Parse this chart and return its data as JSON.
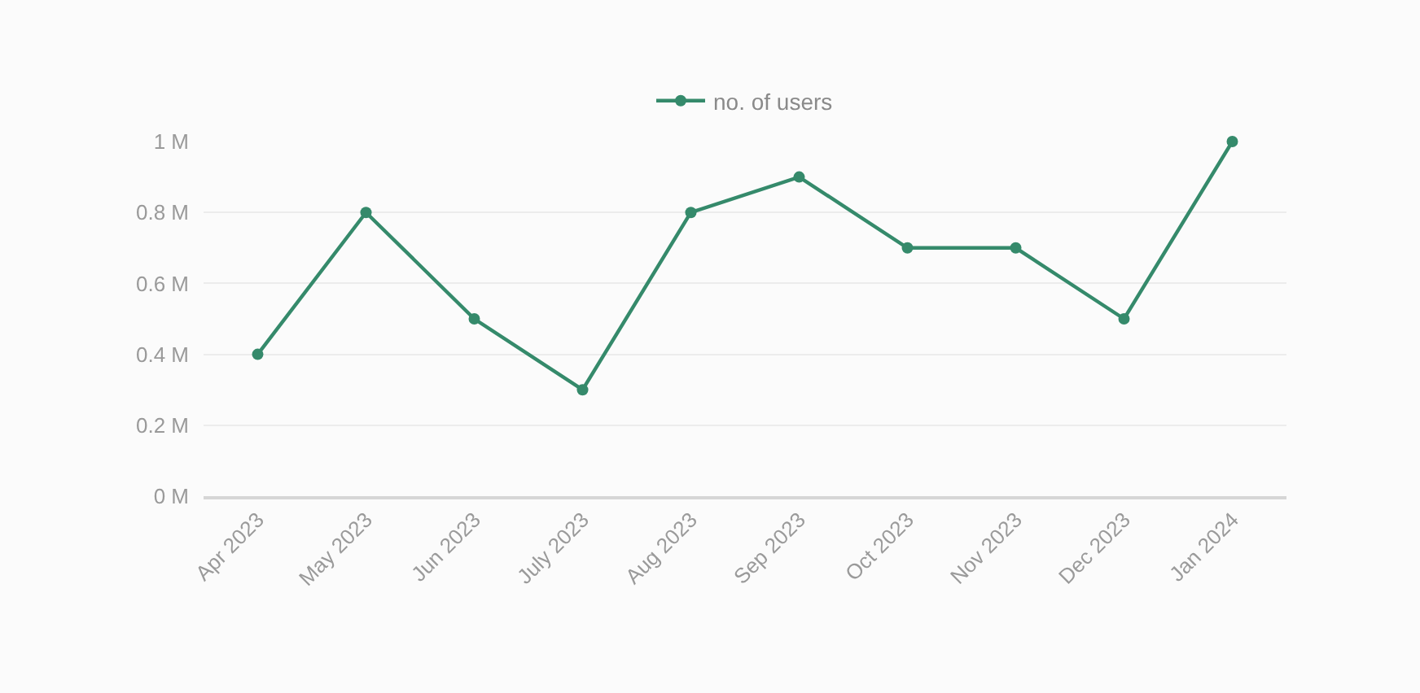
{
  "chart_data": {
    "type": "line",
    "categories": [
      "Apr 2023",
      "May 2023",
      "Jun 2023",
      "July 2023",
      "Aug 2023",
      "Sep 2023",
      "Oct 2023",
      "Nov 2023",
      "Dec 2023",
      "Jan 2024"
    ],
    "series": [
      {
        "name": "no. of users",
        "color": "#358a6b",
        "values": [
          0.4,
          0.8,
          0.5,
          0.3,
          0.8,
          0.9,
          0.7,
          0.7,
          0.5,
          1.0
        ]
      }
    ],
    "ylim": [
      0,
      1
    ],
    "yticks": [
      {
        "value": 0,
        "label": "0 M"
      },
      {
        "value": 0.2,
        "label": "0.2 M"
      },
      {
        "value": 0.4,
        "label": "0.4 M"
      },
      {
        "value": 0.6,
        "label": "0.6 M"
      },
      {
        "value": 0.8,
        "label": "0.8 M"
      },
      {
        "value": 1,
        "label": "1 M"
      }
    ],
    "grid": "y",
    "legend": "top",
    "marker": "circle",
    "line_style": "solid"
  }
}
